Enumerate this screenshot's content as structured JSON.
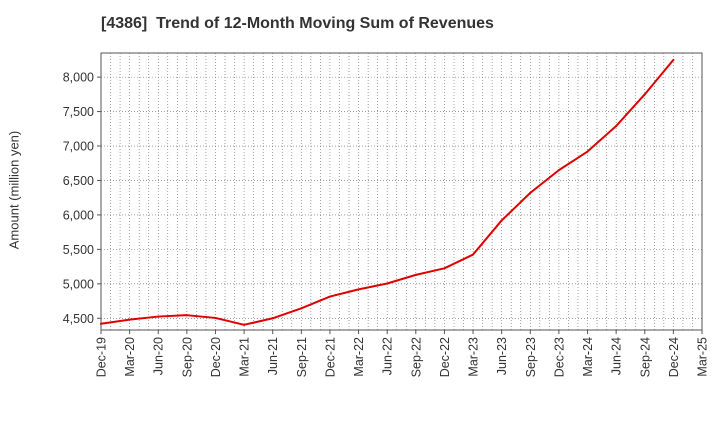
{
  "chart_data": {
    "type": "line",
    "title": "[4386]  Trend of 12-Month Moving Sum of Revenues",
    "xlabel": "",
    "ylabel": "Amount (million yen)",
    "categories": [
      "Dec-19",
      "Mar-20",
      "Jun-20",
      "Sep-20",
      "Dec-20",
      "Mar-21",
      "Jun-21",
      "Sep-21",
      "Dec-21",
      "Mar-22",
      "Jun-22",
      "Sep-22",
      "Dec-22",
      "Mar-23",
      "Jun-23",
      "Sep-23",
      "Dec-23",
      "Mar-24",
      "Jun-24",
      "Sep-24",
      "Dec-24",
      "Mar-25"
    ],
    "series": [
      {
        "color": "#e00000",
        "values": [
          4420,
          4480,
          4525,
          4545,
          4505,
          4405,
          4500,
          4645,
          4815,
          4920,
          5005,
          5130,
          5225,
          5425,
          5920,
          6320,
          6650,
          6920,
          7290,
          7750,
          8250,
          null
        ]
      }
    ],
    "ylim": [
      4330,
      8350
    ],
    "yticks": [
      4500,
      5000,
      5500,
      6000,
      6500,
      7000,
      7500,
      8000
    ],
    "ytick_labels": [
      "4,500",
      "5,000",
      "5,500",
      "6,000",
      "6,500",
      "7,000",
      "7,500",
      "8,000"
    ],
    "grid": true,
    "legend": "none"
  }
}
